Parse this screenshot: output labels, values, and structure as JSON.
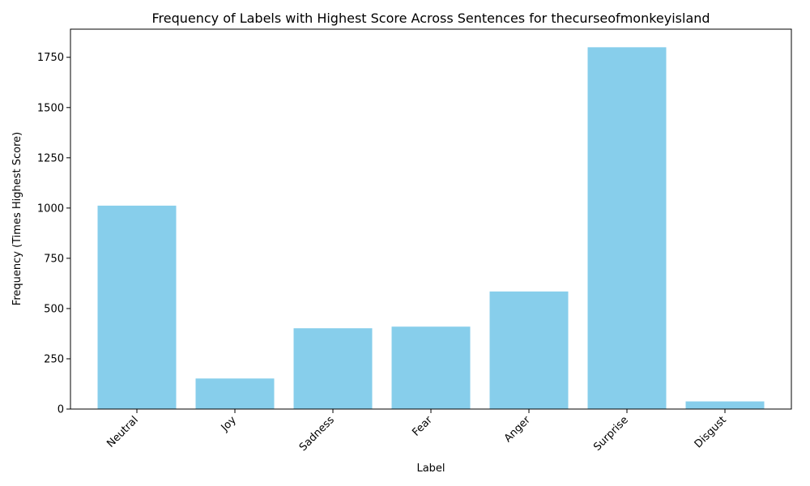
{
  "chart_data": {
    "type": "bar",
    "title": "Frequency of Labels with Highest Score Across Sentences for thecurseofmonkeyisland",
    "xlabel": "Label",
    "ylabel": "Frequency (Times Highest Score)",
    "categories": [
      "Neutral",
      "Joy",
      "Sadness",
      "Fear",
      "Anger",
      "Surprise",
      "Disgust"
    ],
    "values": [
      1012,
      152,
      402,
      410,
      585,
      1800,
      38
    ],
    "ylim": [
      0,
      1890
    ],
    "yticks": [
      0,
      250,
      500,
      750,
      1000,
      1250,
      1500,
      1750
    ],
    "bar_color": "#87CEEB",
    "grid": false,
    "legend": "none"
  }
}
